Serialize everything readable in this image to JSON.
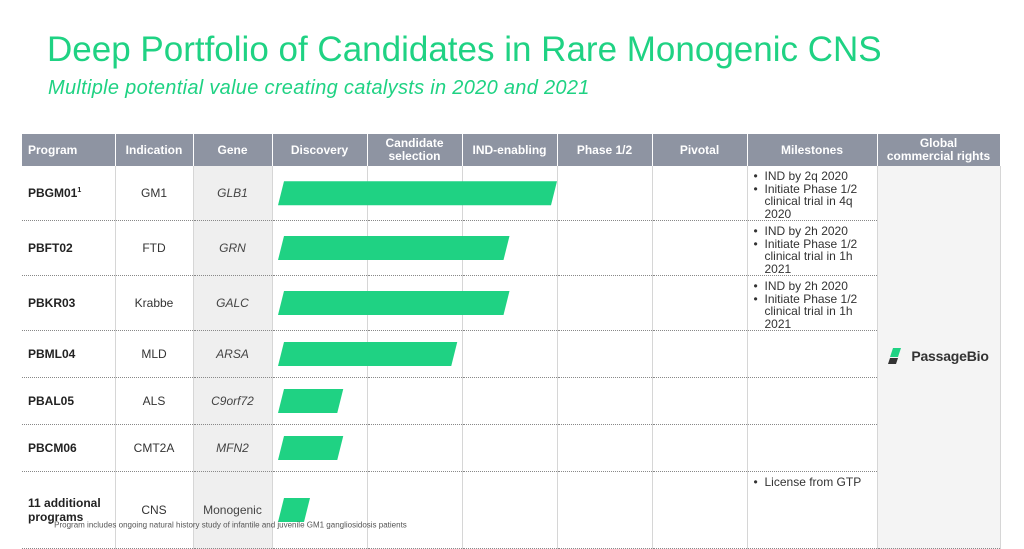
{
  "slide": {
    "title": "Deep Portfolio of Candidates in Rare Monogenic CNS",
    "subtitle": "Multiple potential value creating catalysts in 2020 and 2021",
    "footnote_mark": "1",
    "footnote": "Program includes ongoing natural history study of infantile and juvenile GM1 gangliosidosis patients"
  },
  "table": {
    "headers": {
      "program": "Program",
      "indication": "Indication",
      "gene": "Gene",
      "discovery": "Discovery",
      "candidate_line1": "Candidate",
      "candidate_line2": "selection",
      "ind_enabling": "IND-enabling",
      "phase12": "Phase 1/2",
      "pivotal": "Pivotal",
      "milestones": "Milestones",
      "rights_line1": "Global",
      "rights_line2": "commercial rights"
    },
    "rows": [
      {
        "program": "PBGM01",
        "sup": "1",
        "indication": "GM1",
        "gene": "GLB1",
        "progress_stage": 3.0,
        "milestones": [
          "IND by 2q 2020",
          "Initiate Phase 1/2 clinical trial in 4q 2020"
        ]
      },
      {
        "program": "PBFT02",
        "indication": "FTD",
        "gene": "GRN",
        "progress_stage": 2.5,
        "milestones": [
          "IND by 2h 2020",
          "Initiate Phase 1/2 clinical trial in 1h 2021"
        ]
      },
      {
        "program": "PBKR03",
        "indication": "Krabbe",
        "gene": "GALC",
        "progress_stage": 2.5,
        "milestones": [
          "IND by 2h 2020",
          "Initiate Phase 1/2 clinical trial in 1h 2021"
        ]
      },
      {
        "program": "PBML04",
        "indication": "MLD",
        "gene": "ARSA",
        "progress_stage": 1.95,
        "milestones": []
      },
      {
        "program": "PBAL05",
        "indication": "ALS",
        "gene": "C9orf72",
        "progress_stage": 0.75,
        "milestones": []
      },
      {
        "program": "PBCM06",
        "indication": "CMT2A",
        "gene": "MFN2",
        "progress_stage": 0.75,
        "milestones": []
      },
      {
        "program_line1": "11 additional",
        "program_line2": "programs",
        "indication": "CNS",
        "gene": "Monogenic",
        "progress_stage": 0.4,
        "milestones": [
          "License from GTP"
        ]
      }
    ],
    "rights_holder": "PassageBio"
  },
  "colors": {
    "accent": "#1fd283",
    "header_bg": "#8e94a2"
  }
}
